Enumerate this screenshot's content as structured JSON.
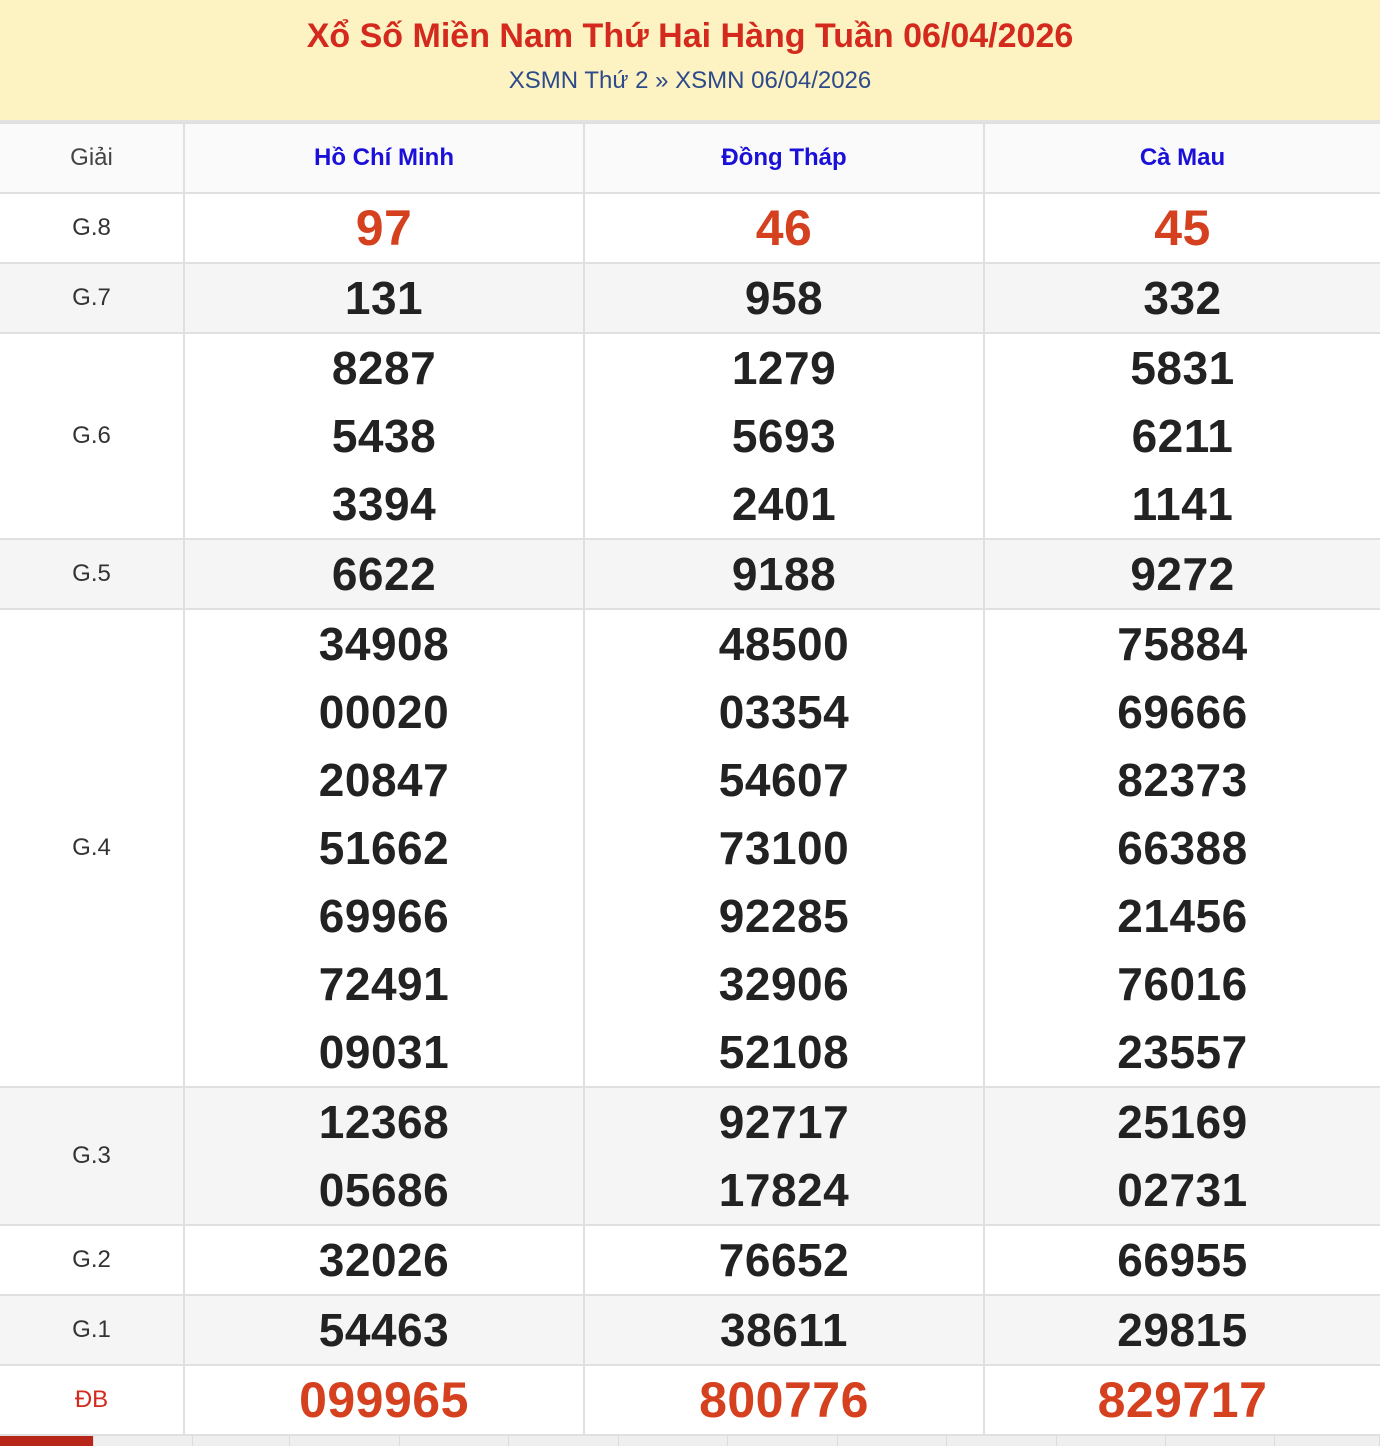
{
  "header": {
    "title": "Xổ Số Miền Nam Thứ Hai Hàng Tuần 06/04/2026",
    "breadcrumb": [
      "XSMN Thứ 2",
      "»",
      "XSMN 06/04/2026"
    ]
  },
  "table": {
    "label_header": "Giải",
    "provinces": [
      "Hồ Chí Minh",
      "Đồng Tháp",
      "Cà Mau"
    ],
    "rows": [
      {
        "label": "G.8",
        "highlight": true,
        "values": [
          [
            "97"
          ],
          [
            "46"
          ],
          [
            "45"
          ]
        ]
      },
      {
        "label": "G.7",
        "values": [
          [
            "131"
          ],
          [
            "958"
          ],
          [
            "332"
          ]
        ]
      },
      {
        "label": "G.6",
        "values": [
          [
            "8287",
            "5438",
            "3394"
          ],
          [
            "1279",
            "5693",
            "2401"
          ],
          [
            "5831",
            "6211",
            "1141"
          ]
        ]
      },
      {
        "label": "G.5",
        "values": [
          [
            "6622"
          ],
          [
            "9188"
          ],
          [
            "9272"
          ]
        ]
      },
      {
        "label": "G.4",
        "values": [
          [
            "34908",
            "00020",
            "20847",
            "51662",
            "69966",
            "72491",
            "09031"
          ],
          [
            "48500",
            "03354",
            "54607",
            "73100",
            "92285",
            "32906",
            "52108"
          ],
          [
            "75884",
            "69666",
            "82373",
            "66388",
            "21456",
            "76016",
            "23557"
          ]
        ]
      },
      {
        "label": "G.3",
        "values": [
          [
            "12368",
            "05686"
          ],
          [
            "92717",
            "17824"
          ],
          [
            "25169",
            "02731"
          ]
        ]
      },
      {
        "label": "G.2",
        "values": [
          [
            "32026"
          ],
          [
            "76652"
          ],
          [
            "66955"
          ]
        ]
      },
      {
        "label": "G.1",
        "values": [
          [
            "54463"
          ],
          [
            "38611"
          ],
          [
            "29815"
          ]
        ]
      },
      {
        "label": "ĐB",
        "highlight": true,
        "special": true,
        "values": [
          [
            "099965"
          ],
          [
            "800776"
          ],
          [
            "829717"
          ]
        ]
      }
    ]
  },
  "colors": {
    "title": "#d42a1e",
    "province": "#1a10d8",
    "highlight": "#d5401f",
    "header_bg": "#fdf2c2"
  }
}
